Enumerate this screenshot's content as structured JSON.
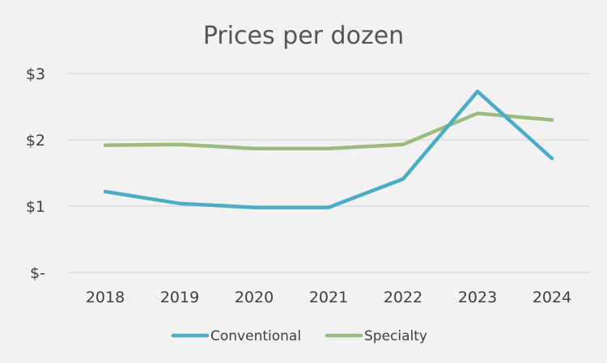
{
  "chart_data": {
    "type": "line",
    "title": "Prices per dozen",
    "xlabel": "",
    "ylabel": "",
    "categories": [
      "2018",
      "2019",
      "2020",
      "2021",
      "2022",
      "2023",
      "2024"
    ],
    "y_ticks": [
      "$-",
      "$1",
      "$2",
      "$3"
    ],
    "ylim": [
      0,
      3
    ],
    "grid": true,
    "legend_position": "bottom",
    "series": [
      {
        "name": "Conventional",
        "color": "#4bacc6",
        "values": [
          1.22,
          1.04,
          0.98,
          0.98,
          1.41,
          2.73,
          1.72
        ]
      },
      {
        "name": "Specialty",
        "color": "#9bbb7f",
        "values": [
          1.92,
          1.93,
          1.87,
          1.87,
          1.93,
          2.4,
          2.3
        ]
      }
    ]
  }
}
